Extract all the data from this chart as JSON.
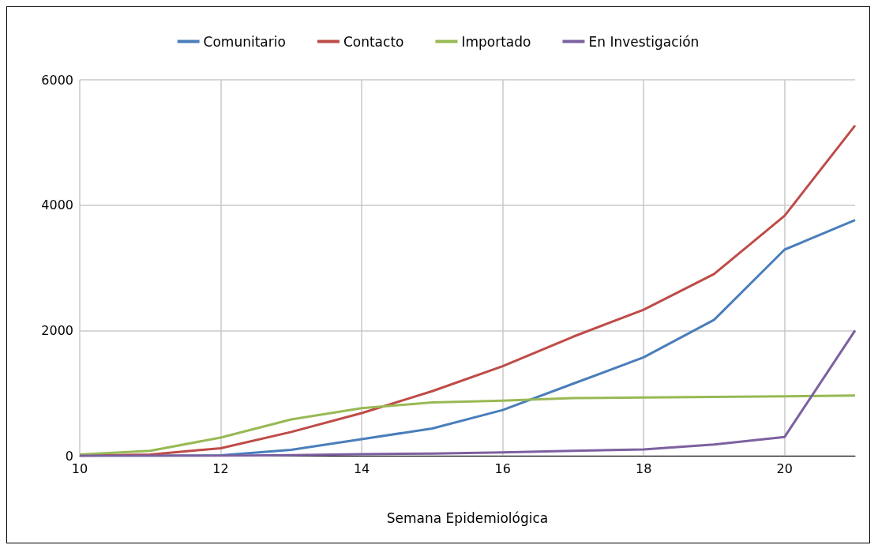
{
  "chart_data": {
    "type": "line",
    "xlabel": "Semana Epidemiológica",
    "x": [
      10,
      11,
      12,
      13,
      14,
      15,
      16,
      17,
      18,
      19,
      20,
      21
    ],
    "series": [
      {
        "name": "Comunitario",
        "color": "#4a7ebb",
        "values": [
          0,
          0,
          5,
          95,
          265,
          435,
          730,
          1150,
          1570,
          2170,
          3290,
          3760
        ]
      },
      {
        "name": "Contacto",
        "color": "#be4b48",
        "values": [
          0,
          20,
          120,
          380,
          680,
          1030,
          1430,
          1900,
          2330,
          2900,
          3830,
          5270
        ]
      },
      {
        "name": "Importado",
        "color": "#98b954",
        "values": [
          20,
          80,
          290,
          580,
          760,
          850,
          880,
          920,
          930,
          940,
          950,
          960
        ]
      },
      {
        "name": "En Investigación",
        "color": "#7d60a0",
        "values": [
          0,
          0,
          0,
          10,
          25,
          35,
          55,
          80,
          100,
          180,
          300,
          2000
        ]
      }
    ],
    "xlim": [
      10,
      21
    ],
    "xticks": [
      10,
      12,
      14,
      16,
      18,
      20
    ],
    "ylim": [
      0,
      6000
    ],
    "yticks": [
      0,
      2000,
      4000,
      6000
    ],
    "grid": true,
    "legend": "top",
    "marker": "none",
    "line_style": "solid"
  }
}
